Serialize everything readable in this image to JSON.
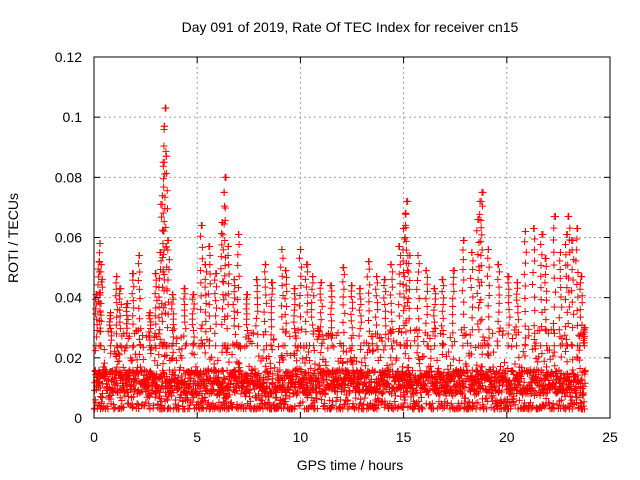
{
  "chart_data": {
    "type": "scatter",
    "title": "Day 091 of 2019, Rate Of TEC Index for receiver cn15",
    "xlabel": "GPS time / hours",
    "ylabel": "ROTI / TECUs",
    "xlim": [
      0,
      25
    ],
    "ylim": [
      0,
      0.12
    ],
    "x_ticks": [
      0,
      5,
      10,
      15,
      20,
      25
    ],
    "x_tick_labels": [
      "0",
      "5",
      "10",
      "15",
      "20",
      "25"
    ],
    "y_ticks": [
      0,
      0.02,
      0.04,
      0.06,
      0.08,
      0.1,
      0.12
    ],
    "y_tick_labels": [
      "0",
      "0.02",
      "0.04",
      "0.06",
      "0.08",
      "0.1",
      "0.12"
    ],
    "grid": true,
    "marker": "+",
    "colors": {
      "points": "#ff0000",
      "grid": "#a0a0a0",
      "axes": "#000000"
    },
    "series": [
      {
        "name": "ROTI",
        "time_range_hours": [
          0,
          23.8
        ],
        "baseline_min": 0.003,
        "baseline_typical": 0.012,
        "band_top_typical": 0.03,
        "peaks": [
          {
            "x": 0.1,
            "y": 0.041
          },
          {
            "x": 0.25,
            "y": 0.052
          },
          {
            "x": 0.3,
            "y": 0.058
          },
          {
            "x": 0.35,
            "y": 0.051
          },
          {
            "x": 0.8,
            "y": 0.035
          },
          {
            "x": 1.1,
            "y": 0.047
          },
          {
            "x": 1.3,
            "y": 0.043
          },
          {
            "x": 1.6,
            "y": 0.038
          },
          {
            "x": 1.9,
            "y": 0.048
          },
          {
            "x": 2.2,
            "y": 0.054
          },
          {
            "x": 2.7,
            "y": 0.035
          },
          {
            "x": 3.0,
            "y": 0.048
          },
          {
            "x": 3.2,
            "y": 0.055
          },
          {
            "x": 3.3,
            "y": 0.071
          },
          {
            "x": 3.35,
            "y": 0.085
          },
          {
            "x": 3.4,
            "y": 0.097
          },
          {
            "x": 3.45,
            "y": 0.103
          },
          {
            "x": 3.5,
            "y": 0.087
          },
          {
            "x": 3.6,
            "y": 0.059
          },
          {
            "x": 3.8,
            "y": 0.041
          },
          {
            "x": 4.4,
            "y": 0.043
          },
          {
            "x": 4.8,
            "y": 0.041
          },
          {
            "x": 5.2,
            "y": 0.064
          },
          {
            "x": 5.4,
            "y": 0.051
          },
          {
            "x": 5.6,
            "y": 0.057
          },
          {
            "x": 5.9,
            "y": 0.048
          },
          {
            "x": 6.2,
            "y": 0.065
          },
          {
            "x": 6.3,
            "y": 0.075
          },
          {
            "x": 6.35,
            "y": 0.08
          },
          {
            "x": 6.5,
            "y": 0.057
          },
          {
            "x": 6.8,
            "y": 0.046
          },
          {
            "x": 7.0,
            "y": 0.061
          },
          {
            "x": 7.4,
            "y": 0.041
          },
          {
            "x": 7.9,
            "y": 0.046
          },
          {
            "x": 8.3,
            "y": 0.051
          },
          {
            "x": 8.6,
            "y": 0.045
          },
          {
            "x": 9.1,
            "y": 0.056
          },
          {
            "x": 9.3,
            "y": 0.049
          },
          {
            "x": 9.7,
            "y": 0.043
          },
          {
            "x": 10.0,
            "y": 0.056
          },
          {
            "x": 10.3,
            "y": 0.051
          },
          {
            "x": 10.6,
            "y": 0.047
          },
          {
            "x": 11.0,
            "y": 0.045
          },
          {
            "x": 11.5,
            "y": 0.044
          },
          {
            "x": 12.1,
            "y": 0.05
          },
          {
            "x": 12.5,
            "y": 0.044
          },
          {
            "x": 12.9,
            "y": 0.043
          },
          {
            "x": 13.3,
            "y": 0.052
          },
          {
            "x": 13.7,
            "y": 0.047
          },
          {
            "x": 14.1,
            "y": 0.046
          },
          {
            "x": 14.4,
            "y": 0.051
          },
          {
            "x": 14.8,
            "y": 0.057
          },
          {
            "x": 15.0,
            "y": 0.063
          },
          {
            "x": 15.1,
            "y": 0.068
          },
          {
            "x": 15.15,
            "y": 0.072
          },
          {
            "x": 15.3,
            "y": 0.054
          },
          {
            "x": 15.7,
            "y": 0.054
          },
          {
            "x": 16.1,
            "y": 0.049
          },
          {
            "x": 16.5,
            "y": 0.043
          },
          {
            "x": 16.9,
            "y": 0.046
          },
          {
            "x": 17.4,
            "y": 0.049
          },
          {
            "x": 17.9,
            "y": 0.059
          },
          {
            "x": 18.3,
            "y": 0.055
          },
          {
            "x": 18.6,
            "y": 0.066
          },
          {
            "x": 18.7,
            "y": 0.072
          },
          {
            "x": 18.8,
            "y": 0.075
          },
          {
            "x": 19.1,
            "y": 0.056
          },
          {
            "x": 19.6,
            "y": 0.051
          },
          {
            "x": 20.1,
            "y": 0.047
          },
          {
            "x": 20.5,
            "y": 0.045
          },
          {
            "x": 20.9,
            "y": 0.062
          },
          {
            "x": 21.3,
            "y": 0.063
          },
          {
            "x": 21.7,
            "y": 0.061
          },
          {
            "x": 21.9,
            "y": 0.053
          },
          {
            "x": 22.3,
            "y": 0.067
          },
          {
            "x": 22.6,
            "y": 0.055
          },
          {
            "x": 22.9,
            "y": 0.061
          },
          {
            "x": 23.0,
            "y": 0.067
          },
          {
            "x": 23.2,
            "y": 0.059
          },
          {
            "x": 23.4,
            "y": 0.063
          },
          {
            "x": 23.6,
            "y": 0.047
          },
          {
            "x": 23.75,
            "y": 0.03
          }
        ]
      }
    ]
  }
}
